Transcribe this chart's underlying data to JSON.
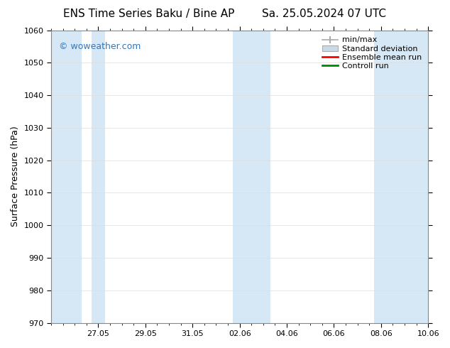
{
  "title_left": "ENS Time Series Baku / Bine AP",
  "title_right": "Sa. 25.05.2024 07 UTC",
  "ylabel": "Surface Pressure (hPa)",
  "ylim": [
    970,
    1060
  ],
  "yticks": [
    970,
    980,
    990,
    1000,
    1010,
    1020,
    1030,
    1040,
    1050,
    1060
  ],
  "xtick_labels": [
    "27.05",
    "29.05",
    "31.05",
    "02.06",
    "04.06",
    "06.06",
    "08.06",
    "10.06"
  ],
  "xtick_positions": [
    2,
    4,
    6,
    8,
    10,
    12,
    14,
    16
  ],
  "shaded_band_color": "#d6e8f5",
  "background_color": "#ffffff",
  "watermark": "© woweather.com",
  "watermark_color": "#3377bb",
  "legend_labels": [
    "min/max",
    "Standard deviation",
    "Ensemble mean run",
    "Controll run"
  ],
  "legend_line_color": "#aaaaaa",
  "legend_patch_color": "#c8dce8",
  "legend_red": "#ff0000",
  "legend_green": "#008800",
  "shaded_ranges": [
    [
      -0.3,
      1.3
    ],
    [
      1.7,
      2.3
    ],
    [
      7.7,
      9.3
    ],
    [
      13.7,
      16.3
    ]
  ],
  "title_fontsize": 11,
  "axis_fontsize": 9,
  "tick_fontsize": 8,
  "legend_fontsize": 8
}
